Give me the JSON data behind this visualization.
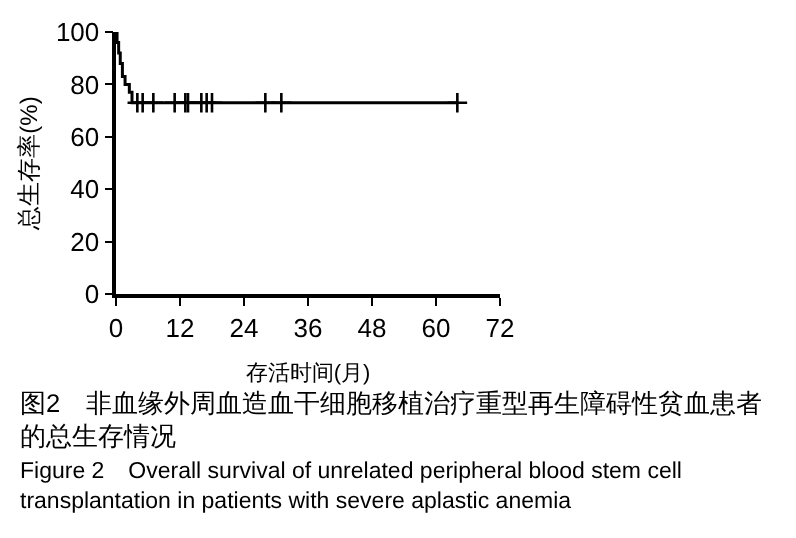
{
  "chart_data": {
    "type": "step",
    "xlabel": "存活时间(月)",
    "ylabel": "总生存率(%)",
    "series": [
      {
        "color": "#000000",
        "marker": "none",
        "x": [
          0,
          0.2,
          0.5,
          0.8,
          1.2,
          1.7,
          2.5,
          3,
          64
        ],
        "values": [
          100,
          96,
          92,
          88,
          83,
          80,
          77,
          73,
          73
        ]
      },
      {
        "type": "scatter",
        "color": "#000000",
        "marker": "cross",
        "x": [
          4,
          5,
          7,
          11,
          13,
          13.5,
          16,
          17,
          18,
          28,
          31,
          64
        ],
        "values": [
          73,
          73,
          73,
          73,
          73,
          73,
          73,
          73,
          73,
          73,
          73,
          73
        ]
      }
    ],
    "xlim": [
      0,
      72
    ],
    "xticks": [
      0,
      12,
      24,
      36,
      48,
      60,
      72
    ],
    "ylim": [
      0,
      100
    ],
    "yticks": [
      0,
      20,
      40,
      60,
      80,
      100
    ],
    "grid": false,
    "annotations": [
      "图2　非血缘外周血造血干细胞移植治疗重型再生障碍性贫血患者的总生存情况",
      "Figure 2　Overall survival of unrelated peripheral blood stem cell transplantation in patients with severe aplastic anemia"
    ]
  }
}
